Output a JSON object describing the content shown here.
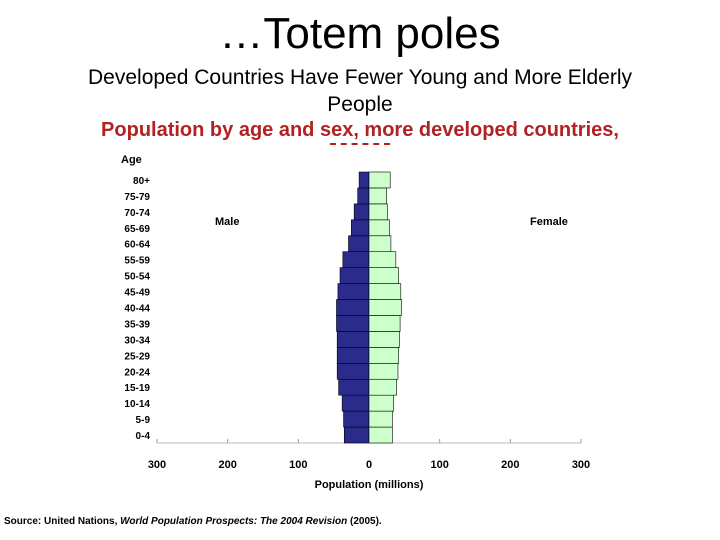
{
  "slide": {
    "title": "…Totem poles",
    "subtitle": "Developed Countries Have Fewer Young and More Elderly People",
    "source_prefix": "Source: United Nations, ",
    "source_title": "World Population Prospects: The 2004 Revision",
    "source_suffix": " (2005)."
  },
  "colors": {
    "male": "#2b2b8c",
    "female": "#ccffcc",
    "title_red": "#b22222"
  },
  "chart_data": {
    "type": "bar",
    "orientation": "horizontal",
    "subtype": "population-pyramid",
    "title": "Population by age and sex, more developed countries,",
    "xlabel": "Population (millions)",
    "ylabel": "Age",
    "xlim": [
      -300,
      300
    ],
    "x_ticks": [
      "300",
      "200",
      "100",
      "0",
      "100",
      "200",
      "300"
    ],
    "grid": true,
    "categories": [
      "0-4",
      "5-9",
      "10-14",
      "15-19",
      "20-24",
      "25-29",
      "30-34",
      "35-39",
      "40-44",
      "45-49",
      "50-54",
      "55-59",
      "60-64",
      "65-69",
      "70-74",
      "75-79",
      "80+"
    ],
    "series": [
      {
        "name": "Male",
        "values": [
          35,
          36,
          38,
          43,
          45,
          45,
          45,
          46,
          46,
          44,
          41,
          37,
          29,
          25,
          21,
          16,
          14
        ]
      },
      {
        "name": "Female",
        "values": [
          33,
          33,
          35,
          39,
          41,
          42,
          43,
          44,
          46,
          45,
          42,
          38,
          31,
          29,
          26,
          25,
          30
        ]
      }
    ]
  }
}
